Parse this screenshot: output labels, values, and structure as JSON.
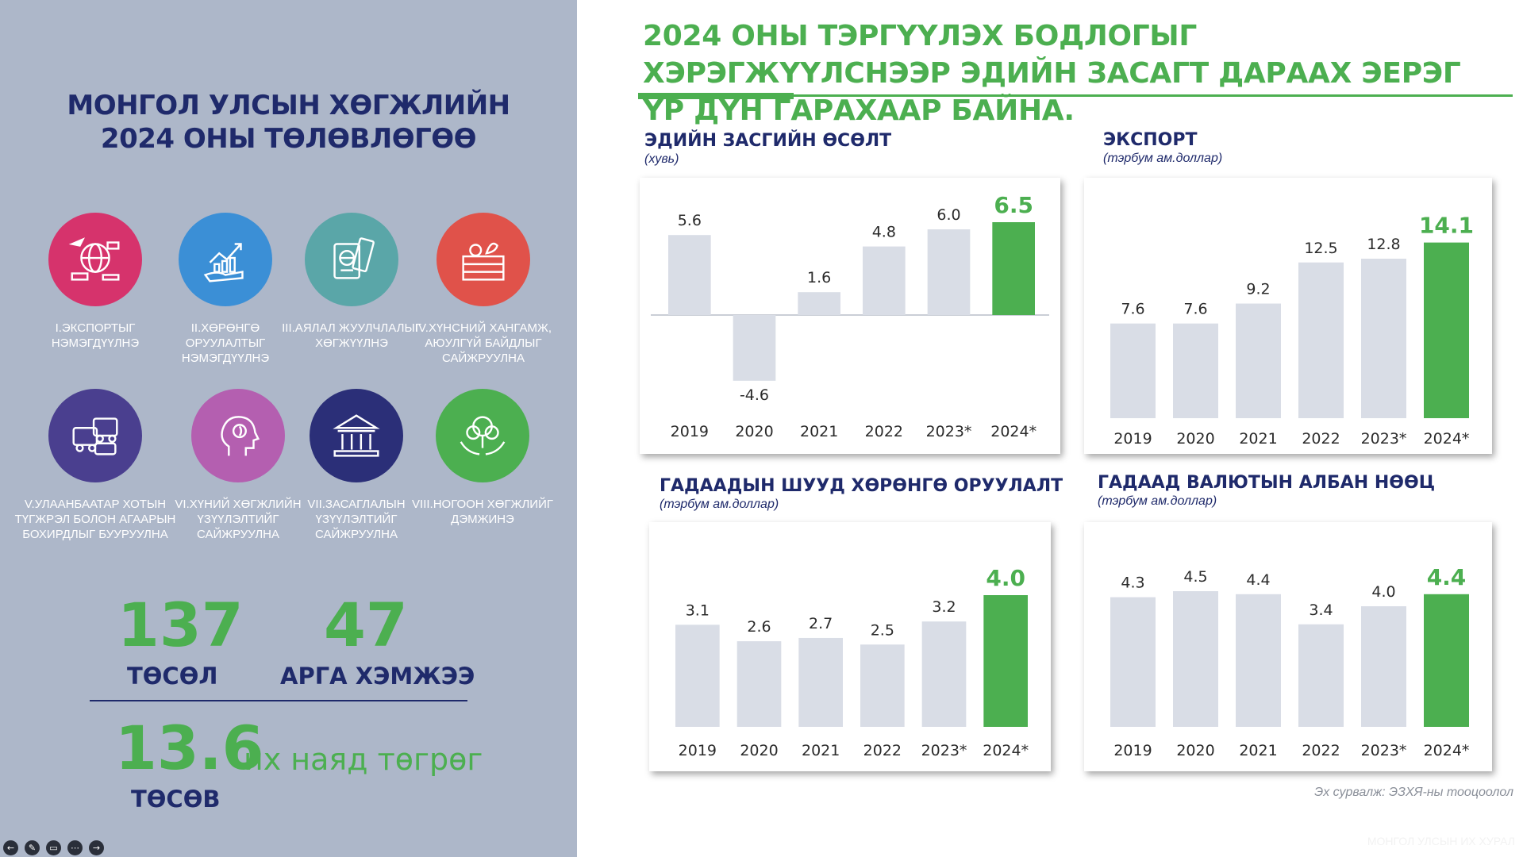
{
  "left": {
    "title": "МОНГОЛ УЛСЫН ХӨГЖЛИЙН 2024 ОНЫ ТӨЛӨВЛӨГӨӨ",
    "goals": [
      {
        "label": "I.ЭКСПОРТЫГ НЭМЭГДҮҮЛНЭ",
        "color": "#d6336c",
        "icon": "export-globe-icon"
      },
      {
        "label": "II.ХӨРӨНГӨ ОРУУЛАЛТЫГ НЭМЭГДҮҮЛНЭ",
        "color": "#3b8fd6",
        "icon": "investment-growth-icon"
      },
      {
        "label": "III.АЯЛАЛ ЖУУЛЧЛАЛЫГ ХӨГЖҮҮЛНЭ",
        "color": "#5aa6a8",
        "icon": "passport-icon"
      },
      {
        "label": "IV.ХҮНСНИЙ ХАНГАМЖ, АЮУЛГҮЙ БАЙДЛЫГ САЙЖРУУЛНА",
        "color": "#e0524a",
        "icon": "food-crate-icon"
      },
      {
        "label": "V.УЛААНБААТАР ХОТЫН ТҮГЖРЭЛ БОЛОН АГААРЫН БОХИРДЛЫГ БУУРУУЛНА",
        "color": "#4a3f8f",
        "icon": "traffic-icon"
      },
      {
        "label": "VI.ХҮНИЙ ХӨГЖЛИЙН ҮЗҮҮЛЭЛТИЙГ САЙЖРУУЛНА",
        "color": "#b45fb0",
        "icon": "human-head-icon"
      },
      {
        "label": "VII.ЗАСАГЛАЛЫН ҮЗҮҮЛЭЛТИЙГ САЙЖРУУЛНА",
        "color": "#2b2f78",
        "icon": "government-building-icon"
      },
      {
        "label": "VIII.НОГООН ХӨГЖЛИЙГ ДЭМЖИНЭ",
        "color": "#4caf50",
        "icon": "green-hands-icon"
      }
    ],
    "projects_num": "137",
    "projects_label": "ТӨСӨЛ",
    "measures_num": "47",
    "measures_label": "АРГА ХЭМЖЭЭ",
    "budget_num": "13.6",
    "budget_unit": "их наяд төгрөг",
    "budget_label": "ТӨСӨВ"
  },
  "main_title": "2024 ОНЫ ТЭРГҮҮЛЭХ БОДЛОГЫГ ХЭРЭГЖҮҮЛСНЭЭР ЭДИЙН ЗАСАГТ ДАРААХ ЭЕРЭГ ҮР ДҮН ГАРАХААР БАЙНА.",
  "source_text": "Эх сурвалж: ЭЗХЯ-ны тооцоолол",
  "watermark": "МОНГОЛ УЛСЫН ИХ ХУРАЛ",
  "colors": {
    "highlight": "#4caf50",
    "bar": "#d9dde6",
    "navy": "#1f2a6b"
  },
  "chart_data": [
    {
      "type": "bar",
      "title": "ЭДИЙН ЗАСГИЙН ӨСӨЛТ",
      "subtitle": "(хувь)",
      "categories": [
        "2019",
        "2020",
        "2021",
        "2022",
        "2023*",
        "2024*"
      ],
      "values": [
        5.6,
        -4.6,
        1.6,
        4.8,
        6.0,
        6.5
      ],
      "value_labels": [
        "5.6",
        "-4.6",
        "1.6",
        "4.8",
        "6.0",
        "6.5"
      ],
      "highlight_index": 5
    },
    {
      "type": "bar",
      "title": "ЭКСПОРТ",
      "subtitle": "(тэрбум ам.доллар)",
      "categories": [
        "2019",
        "2020",
        "2021",
        "2022",
        "2023*",
        "2024*"
      ],
      "values": [
        7.6,
        7.6,
        9.2,
        12.5,
        12.8,
        14.1
      ],
      "value_labels": [
        "7.6",
        "7.6",
        "9.2",
        "12.5",
        "12.8",
        "14.1"
      ],
      "highlight_index": 5
    },
    {
      "type": "bar",
      "title": "ГАДААДЫН ШУУД ХӨРӨНГӨ ОРУУЛАЛТ",
      "subtitle": "(тэрбум ам.доллар)",
      "categories": [
        "2019",
        "2020",
        "2021",
        "2022",
        "2023*",
        "2024*"
      ],
      "values": [
        3.1,
        2.6,
        2.7,
        2.5,
        3.2,
        4.0
      ],
      "value_labels": [
        "3.1",
        "2.6",
        "2.7",
        "2.5",
        "3.2",
        "4.0"
      ],
      "highlight_index": 5
    },
    {
      "type": "bar",
      "title": "ГАДААД ВАЛЮТЫН АЛБАН НӨӨЦ",
      "subtitle": "(тэрбум ам.доллар)",
      "categories": [
        "2019",
        "2020",
        "2021",
        "2022",
        "2023*",
        "2024*"
      ],
      "values": [
        4.3,
        4.5,
        4.4,
        3.4,
        4.0,
        4.4
      ],
      "value_labels": [
        "4.3",
        "4.5",
        "4.4",
        "3.4",
        "4.0",
        "4.4"
      ],
      "highlight_index": 5
    }
  ]
}
